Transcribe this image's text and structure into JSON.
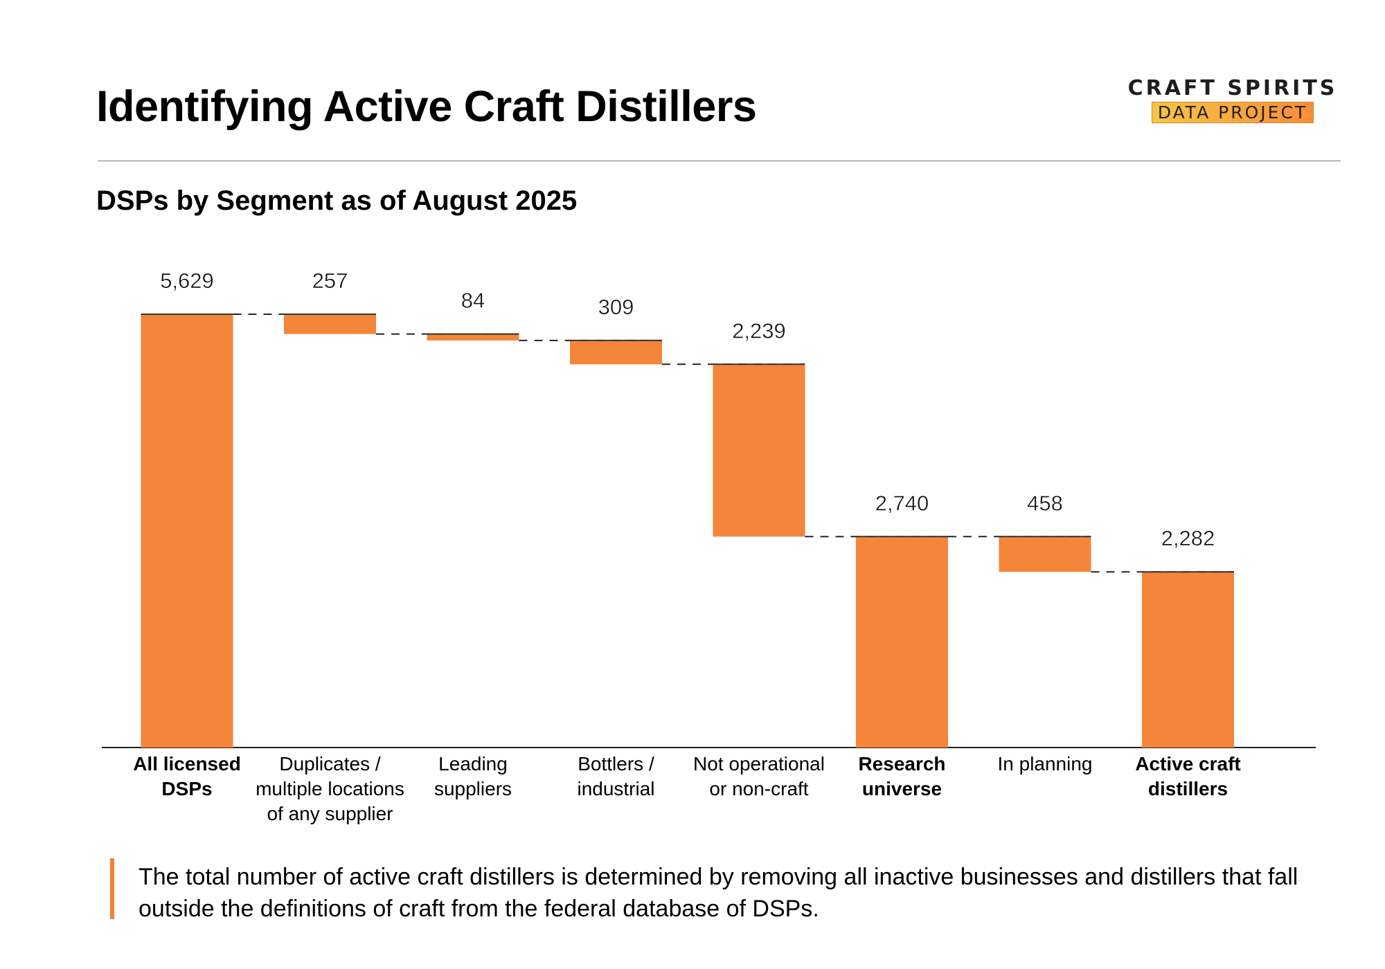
{
  "title": "Identifying Active Craft Distillers",
  "logo": {
    "line1": "CRAFT SPIRITS",
    "line2": "DATA PROJECT"
  },
  "chart_data": {
    "type": "waterfall",
    "title": "DSPs by Segment as of August 2025",
    "categories": [
      "All licensed\nDSPs",
      "Duplicates /\nmultiple locations\nof any  supplier",
      "Leading\nsuppliers",
      "Bottlers /\nindustrial",
      "Not operational\nor non-craft",
      "Research\nuniverse",
      "In planning",
      "Active craft\ndistillers"
    ],
    "bold_categories": [
      true,
      false,
      false,
      false,
      false,
      true,
      false,
      true
    ],
    "values": [
      5629,
      -257,
      -84,
      -309,
      -2239,
      2740,
      -458,
      2282
    ],
    "kinds": [
      "total",
      "decrease",
      "decrease",
      "decrease",
      "decrease",
      "total",
      "decrease",
      "total"
    ],
    "labels": [
      "5,629",
      "257",
      "84",
      "309",
      "2,239",
      "2,740",
      "458",
      "2,282"
    ],
    "ylim": [
      0,
      5629
    ],
    "grid": false,
    "bar_color": "#f5853a"
  },
  "footnote": "The total number of active craft distillers is determined by removing all inactive businesses and distillers that fall outside the definitions of craft  from the federal database of DSPs."
}
